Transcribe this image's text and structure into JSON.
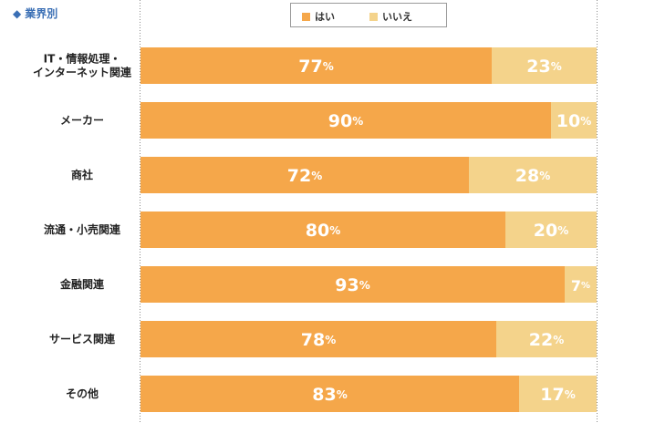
{
  "heading": {
    "icon": "diamond-icon",
    "label": "業界別"
  },
  "legend": {
    "yes": "はい",
    "no": "いいえ"
  },
  "colors": {
    "yes": "#f5a74a",
    "no": "#f4d38b",
    "axis": "#8a8a8a"
  },
  "chart_data": {
    "type": "bar",
    "orientation": "horizontal",
    "stacked": true,
    "title": "業界別",
    "unit": "%",
    "xlim": [
      0,
      100
    ],
    "categories": [
      "IT・情報処理・\nインターネット関連",
      "メーカー",
      "商社",
      "流通・小売関連",
      "金融関連",
      "サービス関連",
      "その他"
    ],
    "series": [
      {
        "name": "はい",
        "values": [
          77,
          90,
          72,
          80,
          93,
          78,
          83
        ]
      },
      {
        "name": "いいえ",
        "values": [
          23,
          10,
          28,
          20,
          7,
          22,
          17
        ]
      }
    ],
    "legend_position": "top-center",
    "grid": false
  }
}
